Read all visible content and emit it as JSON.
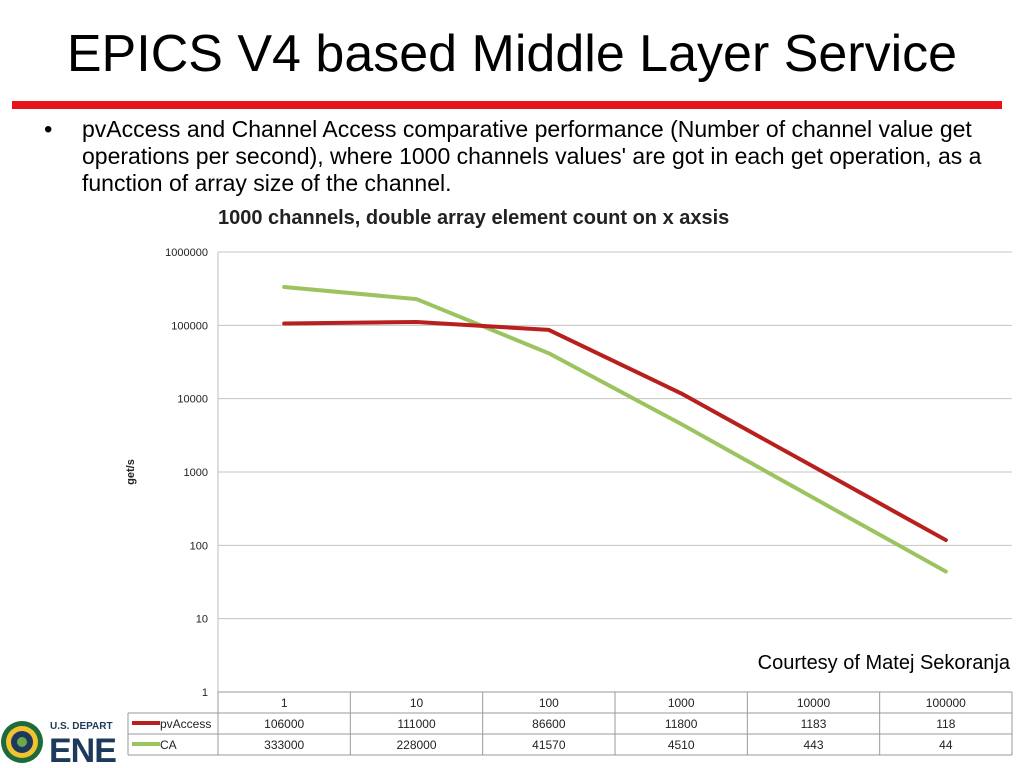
{
  "slide": {
    "title": "EPICS V4 based Middle Layer Service",
    "bullet": "pvAccess and Channel Access comparative performance (Number of channel value get operations per second), where 1000 channels values' are got in each get operation, as a function of array size of the channel.",
    "courtesy": "Courtesy of Matej Sekoranja",
    "accent_color": "#e8121a"
  },
  "logo": {
    "line1": "U.S. DEPART",
    "line2": "ENE"
  },
  "chart_data": {
    "type": "line",
    "title": "1000 channels, double array element count on x axsis",
    "xlabel": "",
    "ylabel": "get/s",
    "yscale": "log",
    "ylim": [
      1,
      1000000
    ],
    "y_ticks": [
      "1",
      "10",
      "100",
      "1000",
      "10000",
      "100000",
      "1000000"
    ],
    "grid": true,
    "legend": "table-below",
    "categories": [
      "1",
      "10",
      "100",
      "1000",
      "10000",
      "100000"
    ],
    "series": [
      {
        "name": "pvAccess",
        "color": "#b8201e",
        "values": [
          106000,
          111000,
          86600,
          11800,
          1183,
          118
        ],
        "labels": [
          "106000",
          "111000",
          "86600",
          "11800",
          "1183",
          "118"
        ]
      },
      {
        "name": "CA",
        "color": "#9bc460",
        "values": [
          333000,
          228000,
          41570,
          4510,
          443,
          44
        ],
        "labels": [
          "333000",
          "228000",
          "41570",
          "4510",
          "443",
          "44"
        ]
      }
    ]
  }
}
